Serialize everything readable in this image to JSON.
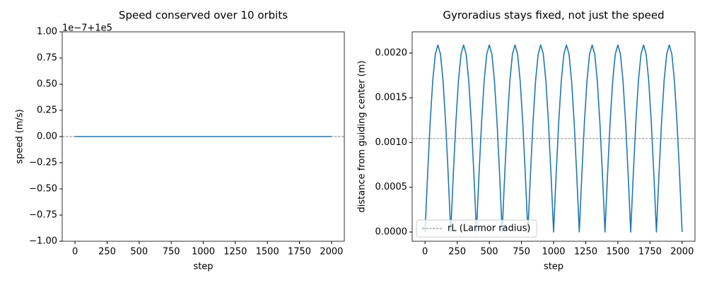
{
  "chart_data": [
    {
      "type": "line",
      "title": "Speed conserved over 10 orbits",
      "xlabel": "step",
      "ylabel": "speed (m/s)",
      "offset_text": "1e−7+1e5",
      "xlim": [
        -100,
        2100
      ],
      "ylim": [
        -1,
        1
      ],
      "xticks": [
        0,
        250,
        500,
        750,
        1000,
        1250,
        1500,
        1750,
        2000
      ],
      "yticks": [
        {
          "value": -1,
          "label": "−1.00"
        },
        {
          "value": -0.75,
          "label": "−0.75"
        },
        {
          "value": -0.5,
          "label": "−0.50"
        },
        {
          "value": -0.25,
          "label": "−0.25"
        },
        {
          "value": 0,
          "label": "0.00"
        },
        {
          "value": 0.25,
          "label": "0.25"
        },
        {
          "value": 0.5,
          "label": "0.50"
        },
        {
          "value": 0.75,
          "label": "0.75"
        },
        {
          "value": 1,
          "label": "1.00"
        }
      ],
      "hline": {
        "value": 0,
        "color": "#808080"
      },
      "x": [
        0,
        500,
        1000,
        1500,
        2000
      ],
      "series": [
        {
          "color": "#1f77b4",
          "values": [
            0,
            0,
            0,
            0,
            0
          ]
        }
      ]
    },
    {
      "type": "line",
      "title": "Gyroradius stays fixed, not just the speed",
      "xlabel": "step",
      "ylabel": "distance from guiding center (m)",
      "xlim": [
        -100,
        2100
      ],
      "ylim": [
        -0.000103,
        0.002237
      ],
      "xticks": [
        0,
        250,
        500,
        750,
        1000,
        1250,
        1500,
        1750,
        2000
      ],
      "yticks": [
        {
          "value": 0,
          "label": "0.0000"
        },
        {
          "value": 0.0005,
          "label": "0.0005"
        },
        {
          "value": 0.001,
          "label": "0.0010"
        },
        {
          "value": 0.0015,
          "label": "0.0015"
        },
        {
          "value": 0.002,
          "label": "0.0020"
        }
      ],
      "hline": {
        "value": 0.001045,
        "color": "#808080",
        "name": "rL (Larmor radius)"
      },
      "legend": "lower left",
      "x": [
        0,
        20,
        40,
        60,
        80,
        100,
        120,
        140,
        160,
        180,
        200,
        220,
        240,
        260,
        280,
        300,
        320,
        340,
        360,
        380,
        400,
        420,
        440,
        460,
        480,
        500,
        520,
        540,
        560,
        580,
        600,
        620,
        640,
        660,
        680,
        700,
        720,
        740,
        760,
        780,
        800,
        820,
        840,
        860,
        880,
        900,
        920,
        940,
        960,
        980,
        1000,
        1020,
        1040,
        1060,
        1080,
        1100,
        1120,
        1140,
        1160,
        1180,
        1200,
        1220,
        1240,
        1260,
        1280,
        1300,
        1320,
        1340,
        1360,
        1380,
        1400,
        1420,
        1440,
        1460,
        1480,
        1500,
        1520,
        1540,
        1560,
        1580,
        1600,
        1620,
        1640,
        1660,
        1680,
        1700,
        1720,
        1740,
        1760,
        1780,
        1800,
        1820,
        1840,
        1860,
        1880,
        1900,
        1920,
        1940,
        1960,
        1980,
        2000
      ],
      "series": [
        {
          "color": "#1f77b4",
          "values": [
            0,
            0.000646,
            0.001228,
            0.001691,
            0.001988,
            0.00209,
            0.001988,
            0.001691,
            0.001228,
            0.000646,
            0,
            0.000646,
            0.001228,
            0.001691,
            0.001988,
            0.00209,
            0.001988,
            0.001691,
            0.001228,
            0.000646,
            0,
            0.000646,
            0.001228,
            0.001691,
            0.001988,
            0.00209,
            0.001988,
            0.001691,
            0.001228,
            0.000646,
            0,
            0.000646,
            0.001228,
            0.001691,
            0.001988,
            0.00209,
            0.001988,
            0.001691,
            0.001228,
            0.000646,
            0,
            0.000646,
            0.001228,
            0.001691,
            0.001988,
            0.00209,
            0.001988,
            0.001691,
            0.001228,
            0.000646,
            0,
            0.000646,
            0.001228,
            0.001691,
            0.001988,
            0.00209,
            0.001988,
            0.001691,
            0.001228,
            0.000646,
            0,
            0.000646,
            0.001228,
            0.001691,
            0.001988,
            0.00209,
            0.001988,
            0.001691,
            0.001228,
            0.000646,
            0,
            0.000646,
            0.001228,
            0.001691,
            0.001988,
            0.00209,
            0.001988,
            0.001691,
            0.001228,
            0.000646,
            0,
            0.000646,
            0.001228,
            0.001691,
            0.001988,
            0.00209,
            0.001988,
            0.001691,
            0.001228,
            0.000646,
            0,
            0.000646,
            0.001228,
            0.001691,
            0.001988,
            0.00209,
            0.001988,
            0.001691,
            0.001228,
            0.000646,
            0
          ]
        }
      ]
    }
  ]
}
